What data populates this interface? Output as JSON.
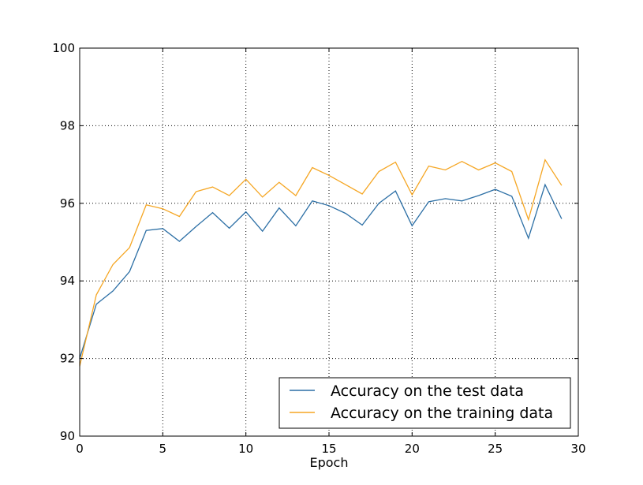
{
  "chart_data": {
    "type": "line",
    "title": "",
    "xlabel": "Epoch",
    "ylabel": "",
    "xlim": [
      0,
      30
    ],
    "ylim": [
      90,
      100
    ],
    "x_ticks": [
      "0",
      "5",
      "10",
      "15",
      "20",
      "25",
      "30"
    ],
    "y_ticks": [
      "90",
      "92",
      "94",
      "96",
      "98",
      "100"
    ],
    "grid": true,
    "legend_position": "lower-right",
    "x": [
      0,
      1,
      2,
      3,
      4,
      5,
      6,
      7,
      8,
      9,
      10,
      11,
      12,
      13,
      14,
      15,
      16,
      17,
      18,
      19,
      20,
      21,
      22,
      23,
      24,
      25,
      26,
      27,
      28,
      29
    ],
    "series": [
      {
        "name": "Accuracy on the test data",
        "color": "#2c6fa5",
        "values": [
          92.0,
          93.4,
          93.74,
          94.24,
          95.3,
          95.35,
          95.02,
          95.4,
          95.76,
          95.36,
          95.78,
          95.28,
          95.88,
          95.42,
          96.06,
          95.94,
          95.74,
          95.44,
          96.0,
          96.32,
          95.42,
          96.04,
          96.12,
          96.06,
          96.2,
          96.36,
          96.18,
          95.1,
          96.48,
          95.6
        ]
      },
      {
        "name": "Accuracy on the training data",
        "color": "#f5a623",
        "values": [
          91.8,
          93.64,
          94.42,
          94.86,
          95.96,
          95.86,
          95.66,
          96.3,
          96.42,
          96.2,
          96.62,
          96.16,
          96.54,
          96.2,
          96.92,
          96.72,
          96.48,
          96.24,
          96.82,
          97.06,
          96.22,
          96.96,
          96.86,
          97.08,
          96.86,
          97.04,
          96.82,
          95.58,
          97.12,
          96.46
        ]
      }
    ]
  }
}
